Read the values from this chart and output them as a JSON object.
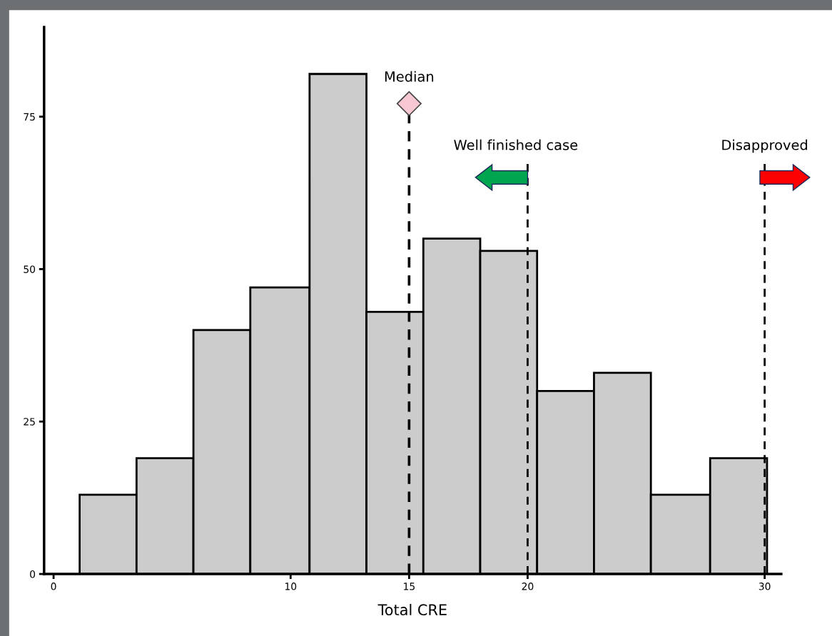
{
  "chart_data": {
    "type": "histogram",
    "xlabel": "Total CRE",
    "bins": [
      1.1,
      3.5,
      5.9,
      8.3,
      10.8,
      13.2,
      15.6,
      18.0,
      20.4,
      22.8,
      25.2,
      27.7,
      30.1
    ],
    "values": [
      13,
      19,
      40,
      47,
      82,
      43,
      55,
      53,
      30,
      33,
      13,
      19
    ],
    "color": "#cccccc",
    "xlim": [
      -0.4,
      30.7
    ],
    "xticks": [
      0,
      10,
      15,
      20,
      30
    ],
    "ylim": [
      0,
      89.7
    ],
    "yticks": [
      0,
      25,
      50,
      75
    ],
    "grid": false,
    "ref_lines": [
      {
        "axis": "x",
        "value": 15,
        "label": "Median",
        "color": "#000000",
        "line_style": "dashed"
      },
      {
        "axis": "x",
        "value": 20,
        "label": "Well finished case",
        "color": "#000000",
        "line_style": "dashed"
      },
      {
        "axis": "x",
        "value": 30,
        "label": "Disapproved",
        "color": "#000000",
        "line_style": "dashed"
      }
    ]
  }
}
